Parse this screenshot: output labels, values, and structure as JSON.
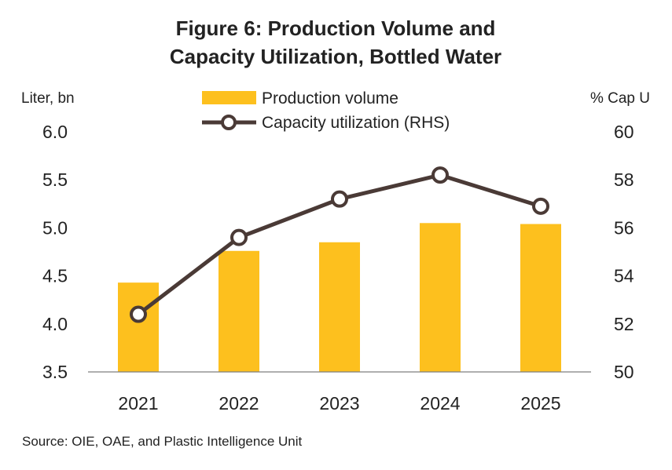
{
  "chart_data": {
    "type": "bar+line",
    "title_line1": "Figure 6: Production Volume and",
    "title_line2": "Capacity Utilization, Bottled Water",
    "left_axis_label": "Liter, bn",
    "right_axis_label": "% Cap U",
    "categories": [
      "2021",
      "2022",
      "2023",
      "2024",
      "2025"
    ],
    "left_ylim": [
      3.5,
      6.0
    ],
    "left_ticks": [
      "3.5",
      "4.0",
      "4.5",
      "5.0",
      "5.5",
      "6.0"
    ],
    "right_ylim": [
      50,
      60
    ],
    "right_ticks": [
      "50",
      "52",
      "54",
      "56",
      "58",
      "60"
    ],
    "series": [
      {
        "name": "Production volume",
        "kind": "bar",
        "axis": "left",
        "color": "#FDC01E",
        "values": [
          4.43,
          4.76,
          4.85,
          5.05,
          5.04
        ]
      },
      {
        "name": "Capacity utilization (RHS)",
        "kind": "line",
        "axis": "right",
        "color": "#4A3A36",
        "values": [
          52.4,
          55.6,
          57.2,
          58.2,
          56.9
        ]
      }
    ],
    "grid": false,
    "legend_position": "top-center",
    "source": "Source: OIE, OAE, and Plastic Intelligence Unit"
  }
}
